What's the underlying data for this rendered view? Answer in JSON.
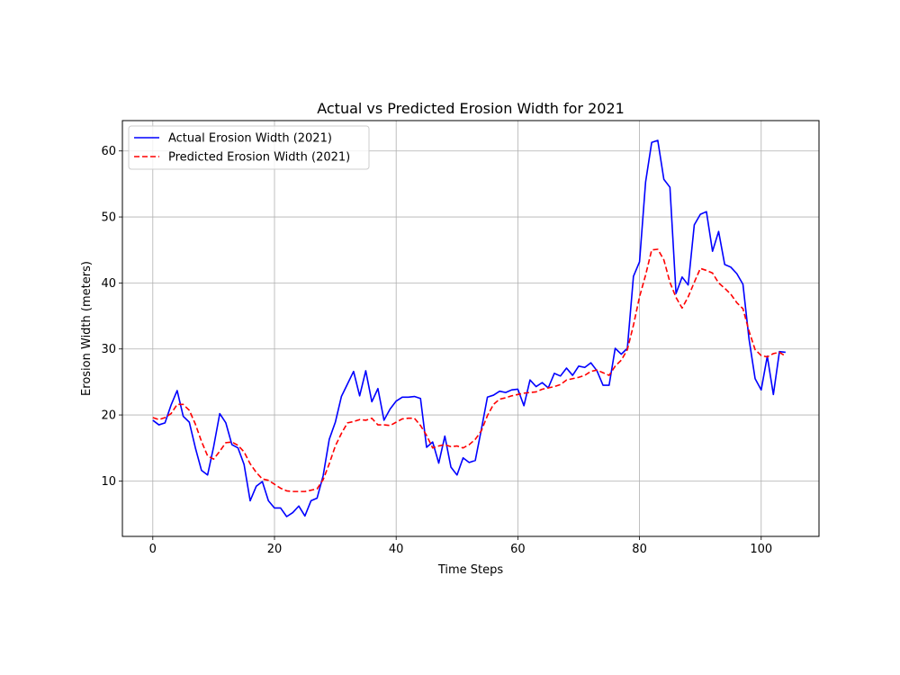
{
  "chart_data": {
    "type": "line",
    "title": "Actual vs Predicted Erosion Width for 2021",
    "xlabel": "Time Steps",
    "ylabel": "Erosion Width (meters)",
    "xlim": [
      -5,
      109.5
    ],
    "ylim": [
      1.6,
      64.6
    ],
    "xticks": [
      0,
      20,
      40,
      60,
      80,
      100
    ],
    "yticks": [
      10,
      20,
      30,
      40,
      50,
      60
    ],
    "grid": true,
    "legend_position": "top-left",
    "series": [
      {
        "name": "Actual Erosion Width (2021)",
        "color": "#0000ff",
        "style": "solid",
        "values": [
          19.2,
          18.5,
          18.8,
          21.5,
          23.7,
          19.8,
          18.9,
          15.0,
          11.6,
          10.9,
          15.2,
          20.2,
          18.8,
          15.5,
          15.0,
          12.5,
          7.0,
          9.2,
          9.9,
          7.0,
          5.9,
          5.9,
          4.6,
          5.2,
          6.2,
          4.7,
          7.0,
          7.4,
          10.8,
          16.3,
          18.9,
          22.8,
          24.7,
          26.6,
          22.9,
          26.7,
          22.0,
          24.0,
          19.2,
          20.9,
          22.1,
          22.7,
          22.7,
          22.8,
          22.5,
          15.1,
          15.9,
          12.7,
          16.8,
          12.1,
          10.9,
          13.5,
          12.8,
          13.1,
          17.8,
          22.7,
          23.0,
          23.6,
          23.4,
          23.8,
          23.9,
          21.4,
          25.3,
          24.3,
          24.9,
          24.1,
          26.3,
          25.9,
          27.1,
          26.0,
          27.4,
          27.2,
          27.9,
          26.7,
          24.5,
          24.5,
          30.1,
          29.2,
          30.1,
          41.0,
          43.2,
          55.3,
          61.3,
          61.6,
          55.7,
          54.5,
          38.4,
          40.9,
          39.7,
          48.8,
          50.4,
          50.8,
          44.8,
          47.8,
          42.8,
          42.4,
          41.4,
          39.8,
          31.5,
          25.5,
          23.8,
          28.9,
          23.1,
          29.6,
          29.5
        ]
      },
      {
        "name": "Predicted Erosion Width (2021)",
        "color": "#ff0000",
        "style": "dashed",
        "values": [
          19.6,
          19.3,
          19.6,
          20.2,
          21.6,
          21.6,
          20.7,
          18.6,
          16.0,
          13.8,
          13.3,
          14.5,
          15.8,
          15.9,
          15.4,
          14.4,
          12.6,
          11.3,
          10.3,
          10.1,
          9.5,
          8.9,
          8.5,
          8.4,
          8.4,
          8.4,
          8.6,
          8.8,
          10.2,
          12.6,
          15.3,
          17.2,
          18.8,
          19.0,
          19.3,
          19.2,
          19.5,
          18.5,
          18.5,
          18.4,
          18.9,
          19.4,
          19.5,
          19.5,
          18.4,
          16.9,
          15.0,
          15.3,
          15.5,
          15.2,
          15.3,
          15.0,
          15.5,
          16.3,
          17.6,
          19.9,
          21.6,
          22.4,
          22.6,
          22.9,
          23.1,
          23.3,
          23.4,
          23.5,
          23.9,
          24.1,
          24.3,
          24.6,
          25.3,
          25.5,
          25.7,
          26.0,
          26.6,
          26.8,
          26.4,
          26.0,
          27.4,
          28.3,
          29.9,
          33.6,
          37.9,
          41.2,
          45.0,
          45.1,
          43.5,
          40.1,
          37.8,
          36.2,
          37.9,
          40.1,
          42.2,
          41.9,
          41.5,
          40.0,
          39.2,
          38.3,
          37.0,
          36.1,
          32.7,
          29.9,
          29.0,
          28.8,
          29.3,
          29.5,
          28.9
        ]
      }
    ]
  }
}
